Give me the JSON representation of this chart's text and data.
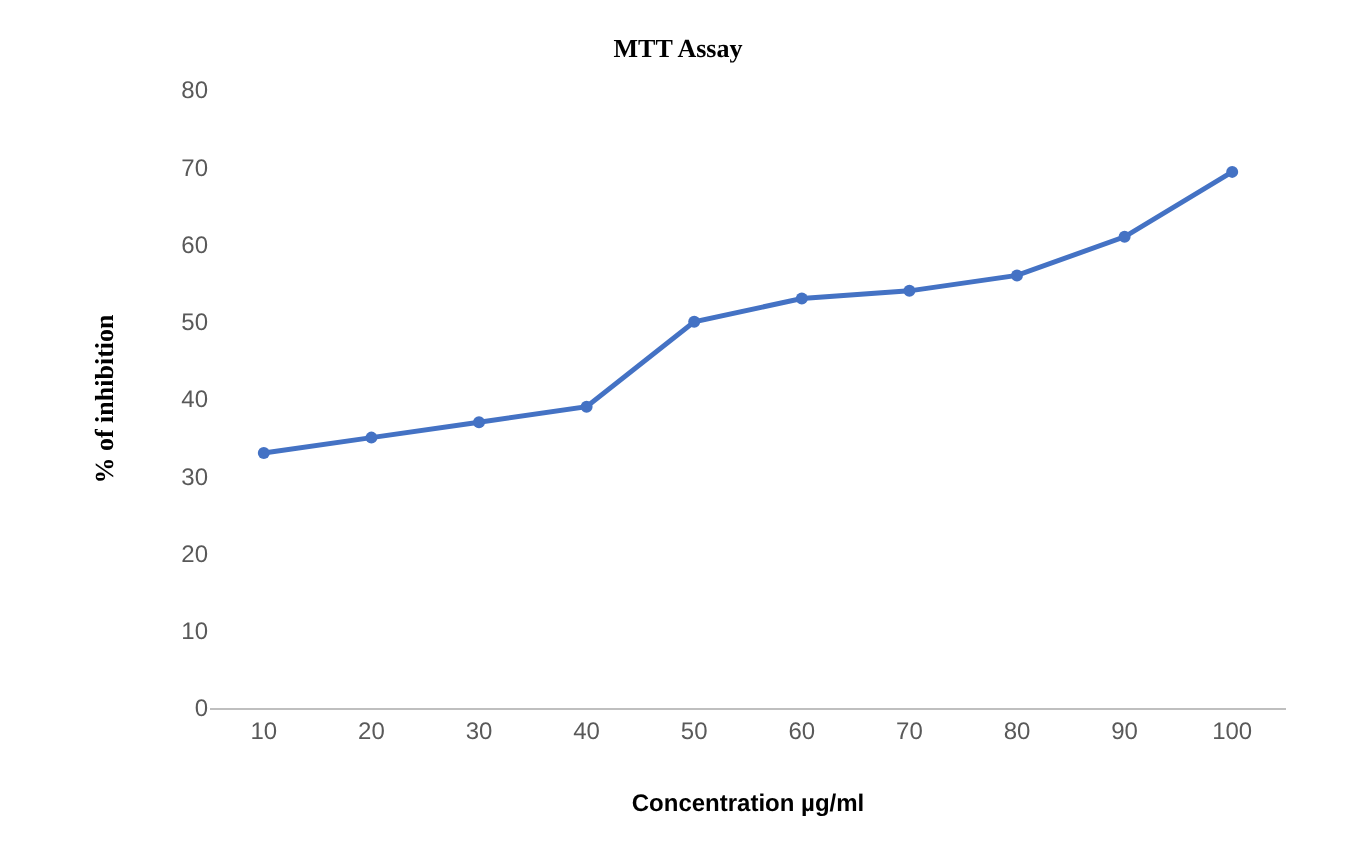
{
  "chart_data": {
    "type": "line",
    "title": "MTT Assay",
    "xlabel": "Concentration µg/ml",
    "ylabel": "% of inhibition",
    "categories": [
      "10",
      "20",
      "30",
      "40",
      "50",
      "60",
      "70",
      "80",
      "90",
      "100"
    ],
    "series": [
      {
        "color": "#4472c4",
        "values": [
          33,
          35,
          37,
          39,
          50,
          53,
          54,
          56,
          61,
          69.4
        ]
      }
    ],
    "ylim": [
      0,
      80
    ],
    "yticks": [
      0,
      10,
      20,
      30,
      40,
      50,
      60,
      70,
      80
    ],
    "marker": "circle",
    "line_style": "solid"
  }
}
